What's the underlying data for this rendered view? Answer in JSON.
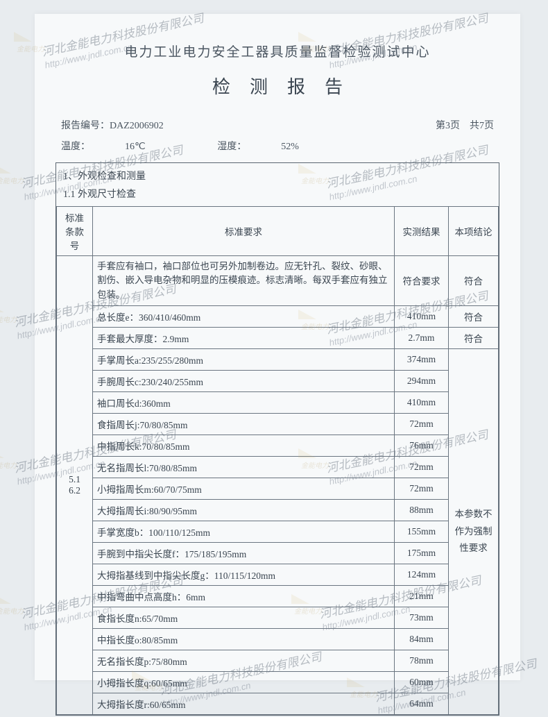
{
  "org_title": "电力工业电力安全工器具质量监督检验测试中心",
  "doc_title": "检测报告",
  "report_no_label": "报告编号：",
  "report_no": "DAZ2006902",
  "page_info": "第3页　共7页",
  "env": {
    "temp_label": "温度：",
    "temp": "16℃",
    "humid_label": "湿度：",
    "humid": "52%"
  },
  "section1": "1、外观检查和测量",
  "section1_1": "1.1 外观尺寸检查",
  "headers": {
    "clause": "标准条款号",
    "requirement": "标准要求",
    "measured": "实测结果",
    "conclusion": "本项结论"
  },
  "clause_span": "5.1\n6.2",
  "conclusion_span": "本参数不作为强制性要求",
  "rows": [
    {
      "req": "手套应有袖口，袖口部位也可另外加制卷边。应无针孔、裂纹、砂眼、割伤、嵌入导电杂物和明显的压模痕迹。标志清晰。每双手套应有独立包装。",
      "meas": "符合要求",
      "conc": "符合",
      "desc": true
    },
    {
      "req": "总长度e：360/410/460mm",
      "meas": "410mm",
      "conc": "符合"
    },
    {
      "req": "手套最大厚度：2.9mm",
      "meas": "2.7mm",
      "conc": "符合"
    },
    {
      "req": "手掌周长a:235/255/280mm",
      "meas": "374mm"
    },
    {
      "req": "手腕周长c:230/240/255mm",
      "meas": "294mm"
    },
    {
      "req": "袖口周长d:360mm",
      "meas": "410mm"
    },
    {
      "req": "食指周长j:70/80/85mm",
      "meas": "72mm"
    },
    {
      "req": "中指周长k:70/80/85mm",
      "meas": "76mm"
    },
    {
      "req": "无名指周长l:70/80/85mm",
      "meas": "72mm"
    },
    {
      "req": "小拇指周长m:60/70/75mm",
      "meas": "72mm"
    },
    {
      "req": "大拇指周长i:80/90/95mm",
      "meas": "88mm"
    },
    {
      "req": "手掌宽度b：100/110/125mm",
      "meas": "155mm"
    },
    {
      "req": "手腕到中指尖长度f：175/185/195mm",
      "meas": "175mm"
    },
    {
      "req": "大拇指基线到中指尖长度g：110/115/120mm",
      "meas": "124mm"
    },
    {
      "req": "中指弯曲中点高度h：6mm",
      "meas": "21mm"
    },
    {
      "req": "食指长度n:65/70mm",
      "meas": "73mm"
    },
    {
      "req": "中指长度o:80/85mm",
      "meas": "84mm"
    },
    {
      "req": "无名指长度p:75/80mm",
      "meas": "78mm"
    },
    {
      "req": "小拇指长度q:60/65mm",
      "meas": "60mm"
    },
    {
      "req": "大拇指长度r:60/65mm",
      "meas": "64mm"
    }
  ],
  "watermark": {
    "cn": "河北金能电力科技股份有限公司",
    "url": "http://www.jndl.com.cn"
  },
  "colors": {
    "page_bg": "#f7f9fa",
    "body_bg": "#e8ecef",
    "text": "#3a4550",
    "border": "#6a7580",
    "wm": "rgba(110,120,135,0.4)"
  }
}
